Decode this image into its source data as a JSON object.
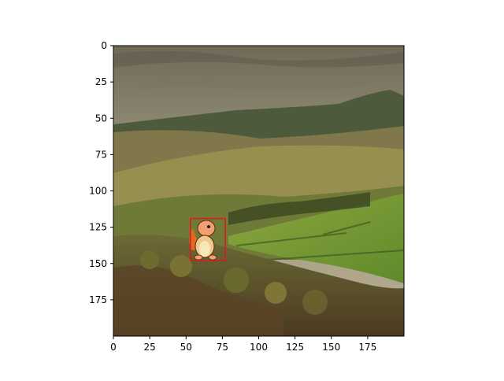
{
  "figure": {
    "image_subject": "hillside landscape with an inserted cartoon sprite",
    "box_color": "#e0181c"
  },
  "axes": {
    "x_ticks": [
      "0",
      "25",
      "50",
      "75",
      "100",
      "125",
      "150",
      "175"
    ],
    "y_ticks": [
      "0",
      "25",
      "50",
      "75",
      "100",
      "125",
      "150",
      "175"
    ],
    "x_range": [
      0,
      200
    ],
    "y_range": [
      200,
      0
    ]
  },
  "annotation": {
    "bbox_data": {
      "x0": 53,
      "y0": 119,
      "x1": 77,
      "y1": 148
    }
  }
}
